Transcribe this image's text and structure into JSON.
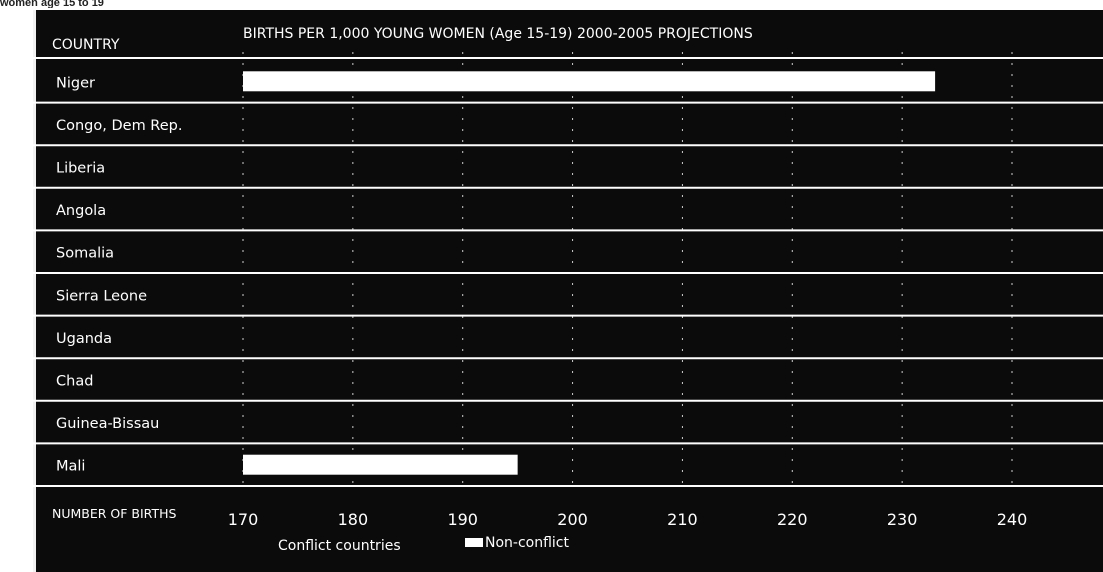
{
  "page": {
    "top_caption": "women age 15 to 19"
  },
  "chart_data": {
    "type": "bar",
    "orientation": "horizontal",
    "header": {
      "country_label": "COUNTRY",
      "title": "BIRTHS PER 1,000 YOUNG WOMEN (Age 15-19)  2000-2005 PROJECTIONS"
    },
    "categories": [
      "Niger",
      "Congo, Dem Rep.",
      "Liberia",
      "Angola",
      "Somalia",
      "Sierra Leone",
      "Uganda",
      "Chad",
      "Guinea-Bissau",
      "Mali"
    ],
    "series": [
      {
        "name": "Non-conflict",
        "color": "#ffffff",
        "values": [
          233,
          null,
          null,
          null,
          null,
          null,
          null,
          null,
          null,
          195
        ]
      }
    ],
    "x_axis": {
      "label": "NUMBER OF BIRTHS",
      "ticks": [
        170,
        180,
        190,
        200,
        210,
        220,
        230,
        240
      ],
      "range": [
        170,
        240
      ]
    },
    "legend": {
      "entries": [
        {
          "label": "Conflict countries",
          "swatch": false
        },
        {
          "label": "Non-conflict",
          "swatch": true,
          "color": "#ffffff"
        }
      ],
      "placement": "bottom"
    },
    "grid": "dashed vertical",
    "colors": {
      "panel_background": "#0b0b0b",
      "text": "#ffffff",
      "bar": "#ffffff",
      "row_divider": "#ffffff"
    }
  }
}
